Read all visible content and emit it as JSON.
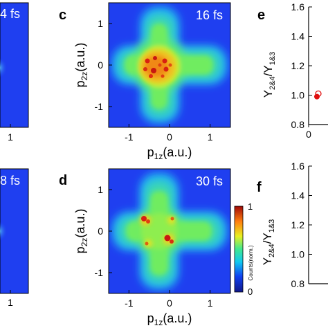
{
  "panels": {
    "left_top": {
      "time": "4 fs",
      "tick": "1"
    },
    "left_bottom": {
      "time": "8 fs",
      "tick": "1"
    },
    "c": {
      "letter": "c",
      "time": "16 fs"
    },
    "d": {
      "letter": "d",
      "time": "30 fs"
    },
    "e": {
      "letter": "e"
    },
    "f": {
      "letter": "f"
    }
  },
  "colorbar": {
    "label": "Counts(norm.)",
    "max_label": "1",
    "min_label": "0"
  },
  "colors": {
    "low": "#1030d8",
    "mid": "#40e060",
    "high": "#d01010"
  },
  "chart_data": [
    {
      "type": "heatmap",
      "panel": "c",
      "title": "16 fs",
      "xlabel": "p1z(a.u.)",
      "ylabel": "p2z(a.u.)",
      "x_ticks": [
        "-1",
        "0",
        "1"
      ],
      "y_ticks": [
        "1",
        "0",
        "-1"
      ],
      "xlim": [
        -1.5,
        1.5
      ],
      "ylim": [
        -1.5,
        1.5
      ],
      "shape": "cross",
      "value_range": [
        0,
        1
      ]
    },
    {
      "type": "heatmap",
      "panel": "d",
      "title": "30 fs",
      "xlabel": "p1z(a.u.)",
      "ylabel": "p2z(a.u.)",
      "x_ticks": [
        "-1",
        "0",
        "1"
      ],
      "y_ticks": [
        "1",
        "0",
        "-1"
      ],
      "xlim": [
        -1.5,
        1.5
      ],
      "ylim": [
        -1.5,
        1.5
      ],
      "shape": "cross",
      "value_range": [
        0,
        1
      ]
    },
    {
      "type": "scatter",
      "panel": "e",
      "ylabel": "Y2&4/Y1&3",
      "y_ticks": [
        "1.6",
        "1.4",
        "1.2",
        "1.0",
        "0.8"
      ],
      "x_ticks": [
        "0"
      ],
      "ylim": [
        0.8,
        1.6
      ],
      "series": [
        {
          "marker": "filled",
          "color": "#e01010",
          "x": [
            0
          ],
          "y": [
            0.99
          ]
        },
        {
          "marker": "open",
          "color": "#e01010",
          "x": [
            0
          ],
          "y": [
            1.01
          ]
        }
      ]
    },
    {
      "type": "scatter",
      "panel": "f",
      "ylabel": "Y2&4/Y1&3",
      "y_ticks": [
        "1.6",
        "1.4",
        "1.2",
        "1.0",
        "0.8"
      ],
      "ylim": [
        0.8,
        1.6
      ],
      "series": []
    }
  ]
}
